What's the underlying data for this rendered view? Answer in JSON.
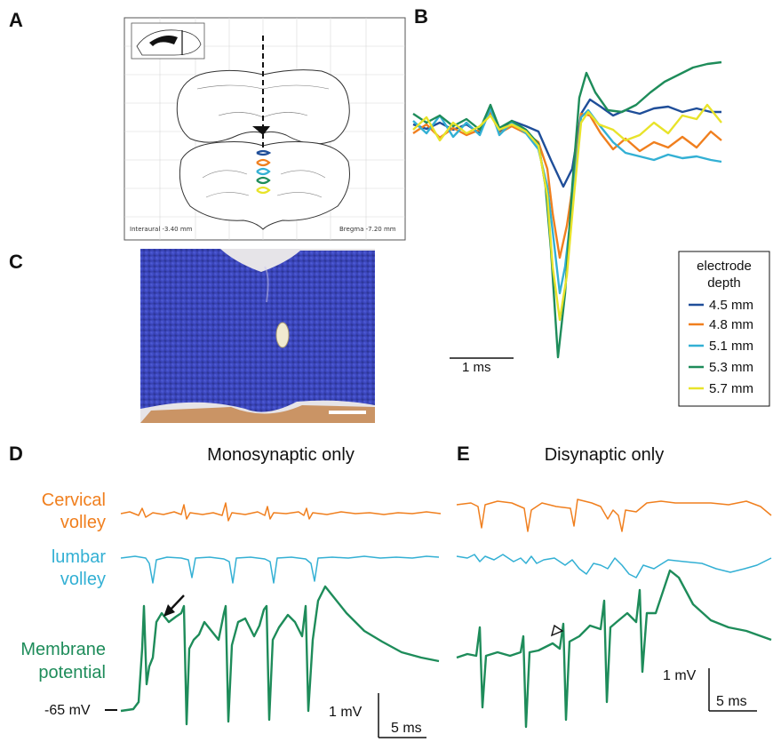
{
  "panels": {
    "A": {
      "label": "A",
      "interaural": "Interaural -3.40 mm",
      "bregma": "Bregma -7.20 mm"
    },
    "B": {
      "label": "B",
      "scalebar": "1 ms",
      "legend_title": [
        "electrode",
        "depth"
      ],
      "legend": [
        {
          "label": "4.5 mm",
          "color": "#1f4e99"
        },
        {
          "label": "4.8 mm",
          "color": "#f07f1e"
        },
        {
          "label": "5.1 mm",
          "color": "#33b0d4"
        },
        {
          "label": "5.3 mm",
          "color": "#1e8c5a"
        },
        {
          "label": "5.7 mm",
          "color": "#e8e32a"
        }
      ]
    },
    "C": {
      "label": "C"
    },
    "D": {
      "label": "D",
      "title": "Monosynaptic only",
      "scale_mv": "1 mV",
      "scale_ms": "5 ms",
      "resting": "-65 mV"
    },
    "E": {
      "label": "E",
      "title": "Disynaptic only",
      "scale_mv": "1 mV",
      "scale_ms": "5 ms"
    }
  },
  "trace_labels": {
    "cervical": [
      "Cervical",
      "volley"
    ],
    "lumbar": [
      "lumbar",
      "volley"
    ],
    "membrane": [
      "Membrane",
      "potential"
    ]
  },
  "colors": {
    "cervical": "#f07f1e",
    "lumbar": "#33b0d4",
    "membrane": "#1e8c5a",
    "tissue": "#3a46c0"
  }
}
